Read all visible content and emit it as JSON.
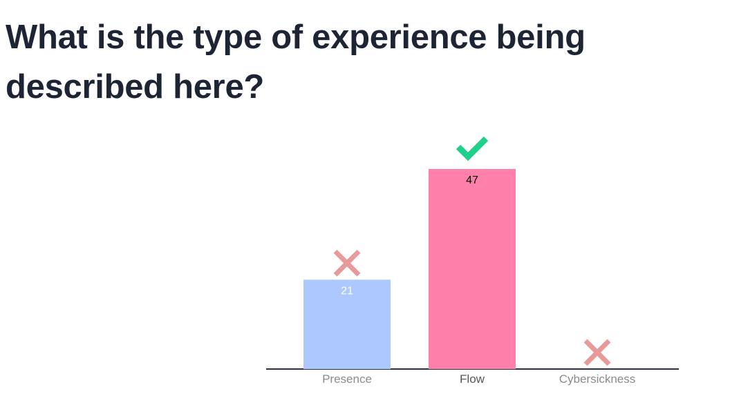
{
  "chart_data": {
    "type": "bar",
    "title": "What is the type of experience being described here?",
    "categories": [
      "Presence",
      "Flow",
      "Cybersickness"
    ],
    "values": [
      21,
      47,
      0
    ],
    "colors": [
      "#adc8fd",
      "#ff80ab",
      "#f4a6a6"
    ],
    "label_colors": [
      "#ffffff",
      "#000000",
      "#000000"
    ],
    "correct": [
      false,
      true,
      false
    ]
  }
}
